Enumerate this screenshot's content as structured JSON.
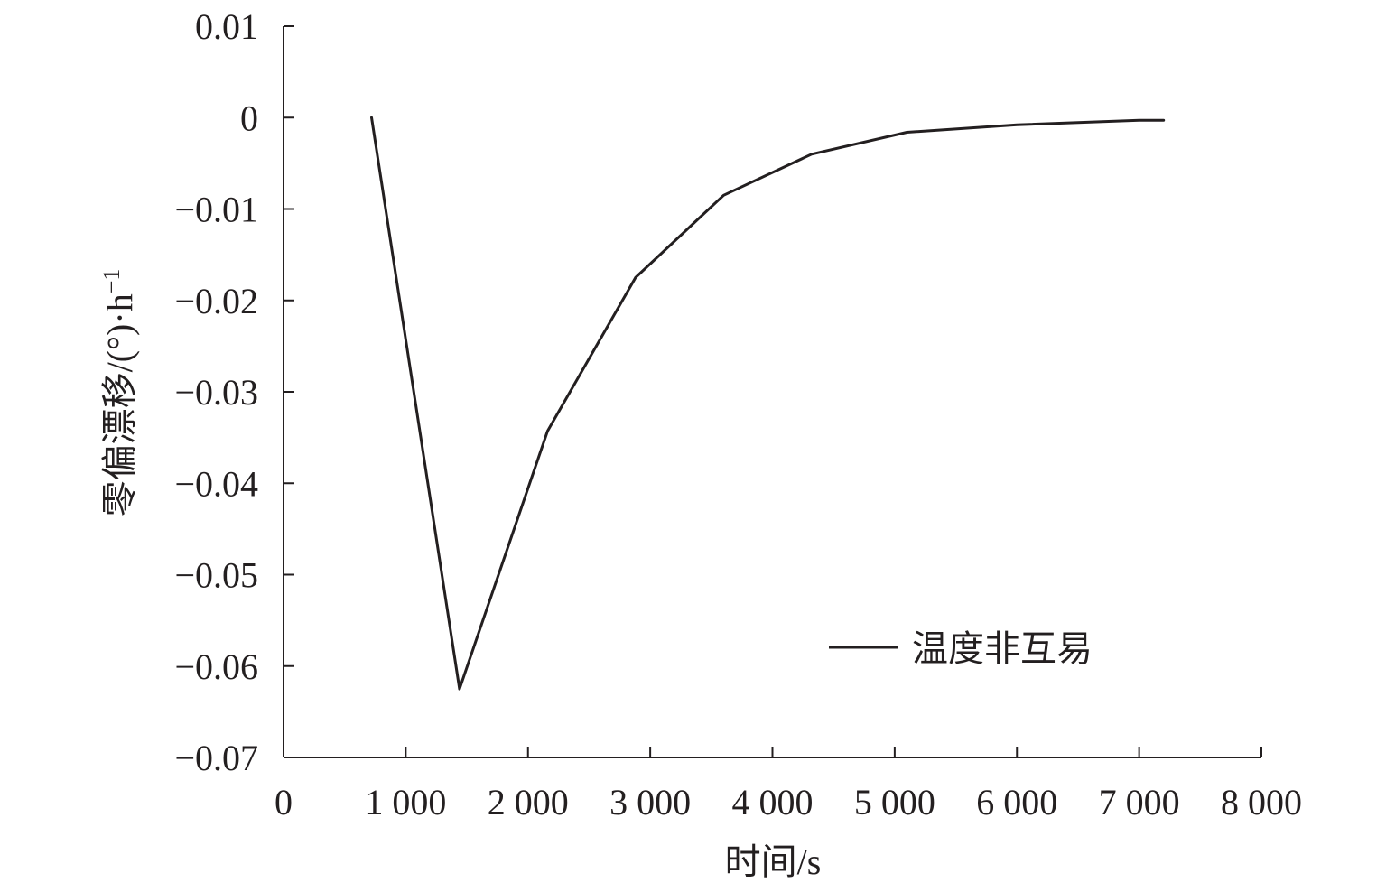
{
  "chart_data": {
    "type": "line",
    "title": "",
    "xlabel": "时间/s",
    "ylabel": "零偏漂移/(°)·h",
    "ylabel_superscript": "−1",
    "xlim": [
      0,
      8000
    ],
    "ylim": [
      -0.07,
      0.01
    ],
    "xticks": [
      0,
      1000,
      2000,
      3000,
      4000,
      5000,
      6000,
      7000,
      8000
    ],
    "xtick_labels": [
      "0",
      "1 000",
      "2 000",
      "3 000",
      "4 000",
      "5 000",
      "6 000",
      "7 000",
      "8 000"
    ],
    "yticks": [
      0.01,
      0,
      -0.01,
      -0.02,
      -0.03,
      -0.04,
      -0.05,
      -0.06,
      -0.07
    ],
    "ytick_labels": [
      "0.01",
      "0",
      "−0.01",
      "−0.02",
      "−0.03",
      "−0.04",
      "−0.05",
      "−0.06",
      "−0.07"
    ],
    "grid": false,
    "legend_position": "lower-right",
    "series": [
      {
        "name": "温度非互易",
        "color": "#231f20",
        "x": [
          720,
          1440,
          2160,
          2880,
          3600,
          4320,
          5100,
          6000,
          7000,
          7200
        ],
        "y": [
          0.0,
          -0.0625,
          -0.0343,
          -0.0175,
          -0.0085,
          -0.004,
          -0.0016,
          -0.0008,
          -0.0003,
          -0.0003
        ]
      }
    ]
  }
}
